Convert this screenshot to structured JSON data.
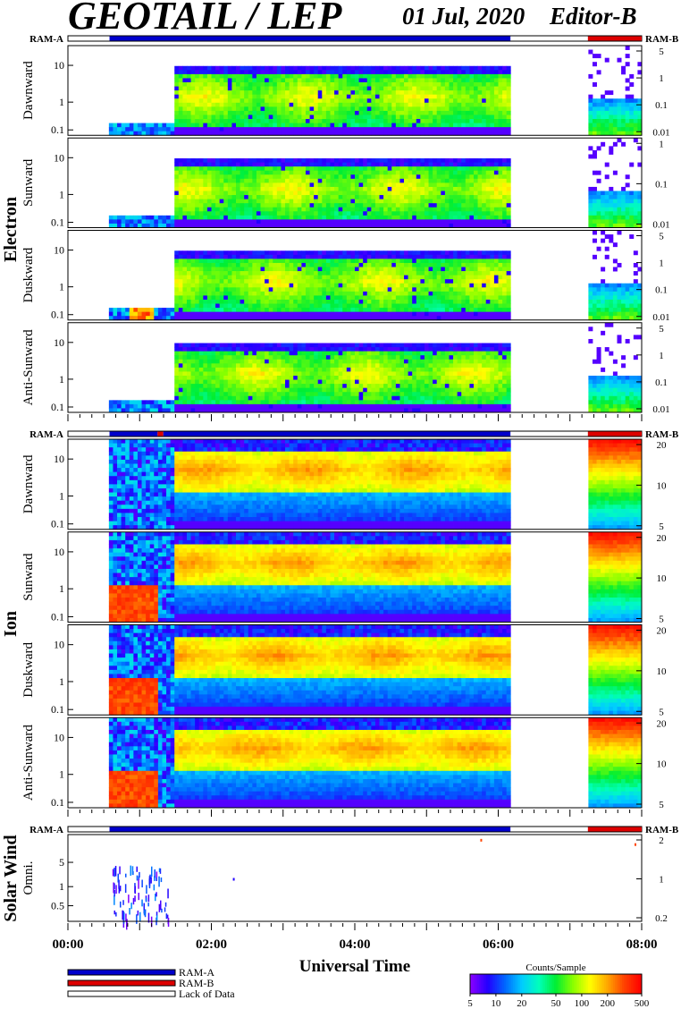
{
  "header": {
    "title": "GEOTAIL / LEP",
    "date": "01 Jul, 2020",
    "editor": "Editor-B"
  },
  "colors": {
    "ram_a": "#0000cc",
    "ram_b": "#dd0000",
    "lack_of_data": "#ffffff",
    "colorbar": [
      "#8800ff",
      "#2200ff",
      "#0066ff",
      "#00ccff",
      "#00ffbb",
      "#00ee33",
      "#88ff00",
      "#ffff00",
      "#ffaa00",
      "#ff4400",
      "#ff0000"
    ]
  },
  "chart_data": {
    "type": "heatmap",
    "xaxis": {
      "label": "Universal Time",
      "range_hours": [
        0,
        8
      ],
      "tick_labels": [
        "00:00",
        "02:00",
        "04:00",
        "06:00",
        "08:00"
      ],
      "tick_hours": [
        0,
        2,
        4,
        6,
        8
      ]
    },
    "groups": [
      {
        "name": "Electron",
        "ram_labels": [
          "RAM-A",
          "RAM-B"
        ],
        "ram_segments": [
          {
            "mode": "RAM-A",
            "start": 0.58,
            "end": 6.17
          },
          {
            "mode": "RAM-B",
            "start": 7.25,
            "end": 8.0
          }
        ],
        "panels": [
          {
            "label": "Dawnward",
            "left_ticks": [
              "10",
              "1",
              "0.1"
            ],
            "right_ticks": [
              "5",
              "1",
              "0.1",
              "0.01"
            ]
          },
          {
            "label": "Sunward",
            "left_ticks": [
              "10",
              "1",
              "0.1"
            ],
            "right_ticks": [
              "1",
              "0.1",
              "0.01"
            ]
          },
          {
            "label": "Duskward",
            "left_ticks": [
              "10",
              "1",
              "0.1"
            ],
            "right_ticks": [
              "5",
              "1",
              "0.1",
              "0.01"
            ]
          },
          {
            "label": "Anti-Sunward",
            "left_ticks": [
              "10",
              "1",
              "0.1"
            ],
            "right_ticks": [
              "5",
              "1",
              "0.1",
              "0.01"
            ]
          }
        ]
      },
      {
        "name": "Ion",
        "ram_labels": [
          "RAM-A",
          "RAM-B"
        ],
        "ram_segments": [
          {
            "mode": "RAM-A",
            "start": 0.58,
            "end": 1.25
          },
          {
            "mode": "RAM-B",
            "start": 1.25,
            "end": 1.33
          },
          {
            "mode": "RAM-A",
            "start": 1.33,
            "end": 6.17
          },
          {
            "mode": "RAM-B",
            "start": 7.25,
            "end": 8.0
          }
        ],
        "panels": [
          {
            "label": "Dawnward",
            "left_ticks": [
              "10",
              "1",
              "0.1"
            ],
            "right_ticks": [
              "20",
              "10",
              "5"
            ]
          },
          {
            "label": "Sunward",
            "left_ticks": [
              "10",
              "1",
              "0.1"
            ],
            "right_ticks": [
              "20",
              "10",
              "5"
            ]
          },
          {
            "label": "Duskward",
            "left_ticks": [
              "10",
              "1",
              "0.1"
            ],
            "right_ticks": [
              "20",
              "10",
              "5"
            ]
          },
          {
            "label": "Anti-Sunward",
            "left_ticks": [
              "10",
              "1",
              "0.1"
            ],
            "right_ticks": [
              "20",
              "10",
              "5"
            ]
          }
        ]
      },
      {
        "name": "Solar Wind",
        "ram_labels": [
          "RAM-A",
          "RAM-B"
        ],
        "ram_segments": [
          {
            "mode": "RAM-A",
            "start": 0.58,
            "end": 6.17
          },
          {
            "mode": "RAM-B",
            "start": 7.25,
            "end": 8.0
          }
        ],
        "panels": [
          {
            "label": "Omni.",
            "left_ticks": [
              "5",
              "1",
              "0.5"
            ],
            "right_ticks": [
              "2",
              "1",
              "0.2"
            ]
          }
        ]
      }
    ],
    "legend": {
      "items": [
        "RAM-A",
        "RAM-B",
        "Lack of Data"
      ]
    },
    "colorbar": {
      "title": "Counts/Sample",
      "tick_labels": [
        "5",
        "10",
        "20",
        "50",
        "100",
        "200",
        "500"
      ],
      "range": [
        5,
        500
      ]
    }
  }
}
